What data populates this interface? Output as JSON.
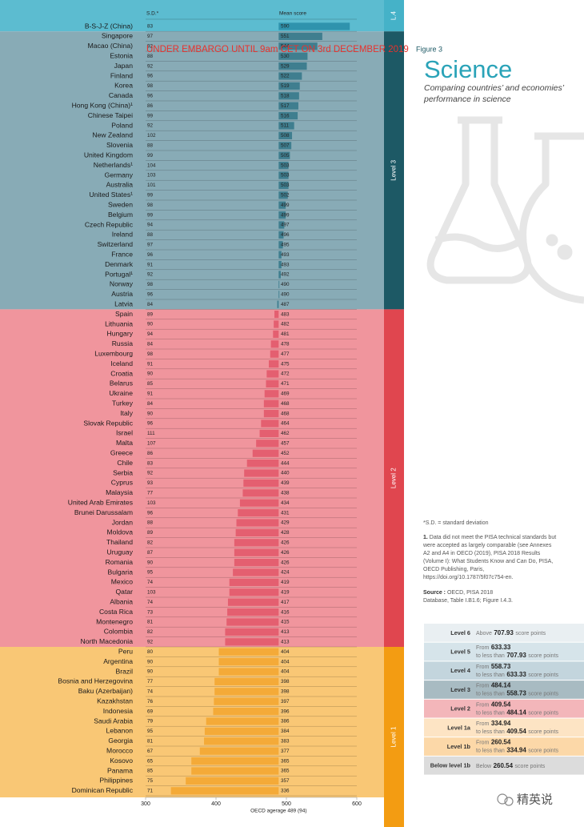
{
  "chart_data": {
    "type": "bar",
    "column_headers": {
      "sd": "S.D.*",
      "score": "Mean score"
    },
    "xlim": [
      300,
      600
    ],
    "xticks": [
      300,
      400,
      500,
      600
    ],
    "x_label": "OECD agerage 489 (94)",
    "oecd_average": 489,
    "groups": [
      {
        "label": "L.4",
        "background": "#5cbcd0",
        "strip": "#45b2c8",
        "bar": "#2f93ad",
        "countries": [
          {
            "name": "B-S-J-Z (China)",
            "sd": 83,
            "score": 590
          }
        ]
      },
      {
        "label": "Level 3",
        "background": "#88abb6",
        "strip": "#1d5965",
        "bar": "#3f7e8f",
        "countries": [
          {
            "name": "Singapore",
            "sd": 97,
            "score": 551
          },
          {
            "name": "Macao (China)",
            "sd": 92,
            "score": 544
          },
          {
            "name": "Estonia",
            "sd": 88,
            "score": 530
          },
          {
            "name": "Japan",
            "sd": 92,
            "score": 529
          },
          {
            "name": "Finland",
            "sd": 96,
            "score": 522
          },
          {
            "name": "Korea",
            "sd": 98,
            "score": 519
          },
          {
            "name": "Canada",
            "sd": 96,
            "score": 518
          },
          {
            "name": "Hong Kong (China)¹",
            "sd": 86,
            "score": 517
          },
          {
            "name": "Chinese Taipei",
            "sd": 99,
            "score": 516
          },
          {
            "name": "Poland",
            "sd": 92,
            "score": 511
          },
          {
            "name": "New Zealand",
            "sd": 102,
            "score": 508
          },
          {
            "name": "Slovenia",
            "sd": 88,
            "score": 507
          },
          {
            "name": "United Kingdom",
            "sd": 99,
            "score": 505
          },
          {
            "name": "Netherlands¹",
            "sd": 104,
            "score": 503
          },
          {
            "name": "Germany",
            "sd": 103,
            "score": 503
          },
          {
            "name": "Australia",
            "sd": 101,
            "score": 503
          },
          {
            "name": "United States¹",
            "sd": 99,
            "score": 502
          },
          {
            "name": "Sweden",
            "sd": 98,
            "score": 499
          },
          {
            "name": "Belgium",
            "sd": 99,
            "score": 499
          },
          {
            "name": "Czech Republic",
            "sd": 94,
            "score": 497
          },
          {
            "name": "Ireland",
            "sd": 88,
            "score": 496
          },
          {
            "name": "Switzerland",
            "sd": 97,
            "score": 495
          },
          {
            "name": "France",
            "sd": 96,
            "score": 493
          },
          {
            "name": "Denmark",
            "sd": 91,
            "score": 493
          },
          {
            "name": "Portugal¹",
            "sd": 92,
            "score": 492
          },
          {
            "name": "Norway",
            "sd": 98,
            "score": 490
          },
          {
            "name": "Austria",
            "sd": 96,
            "score": 490
          },
          {
            "name": "Latvia",
            "sd": 84,
            "score": 487
          }
        ]
      },
      {
        "label": "Level 2",
        "background": "#f0959d",
        "strip": "#e0464f",
        "bar": "#e45f70",
        "countries": [
          {
            "name": "Spain",
            "sd": 89,
            "score": 483
          },
          {
            "name": "Lithuania",
            "sd": 90,
            "score": 482
          },
          {
            "name": "Hungary",
            "sd": 94,
            "score": 481
          },
          {
            "name": "Russia",
            "sd": 84,
            "score": 478
          },
          {
            "name": "Luxembourg",
            "sd": 98,
            "score": 477
          },
          {
            "name": "Iceland",
            "sd": 91,
            "score": 475
          },
          {
            "name": "Croatia",
            "sd": 90,
            "score": 472
          },
          {
            "name": "Belarus",
            "sd": 85,
            "score": 471
          },
          {
            "name": "Ukraine",
            "sd": 91,
            "score": 469
          },
          {
            "name": "Turkey",
            "sd": 84,
            "score": 468
          },
          {
            "name": "Italy",
            "sd": 90,
            "score": 468
          },
          {
            "name": "Slovak Republic",
            "sd": 96,
            "score": 464
          },
          {
            "name": "Israel",
            "sd": 111,
            "score": 462
          },
          {
            "name": "Malta",
            "sd": 107,
            "score": 457
          },
          {
            "name": "Greece",
            "sd": 86,
            "score": 452
          },
          {
            "name": "Chile",
            "sd": 83,
            "score": 444
          },
          {
            "name": "Serbia",
            "sd": 92,
            "score": 440
          },
          {
            "name": "Cyprus",
            "sd": 93,
            "score": 439
          },
          {
            "name": "Malaysia",
            "sd": 77,
            "score": 438
          },
          {
            "name": "United Arab Emirates",
            "sd": 103,
            "score": 434
          },
          {
            "name": "Brunei Darussalam",
            "sd": 96,
            "score": 431
          },
          {
            "name": "Jordan",
            "sd": 88,
            "score": 429
          },
          {
            "name": "Moldova",
            "sd": 89,
            "score": 428
          },
          {
            "name": "Thailand",
            "sd": 82,
            "score": 426
          },
          {
            "name": "Uruguay",
            "sd": 87,
            "score": 426
          },
          {
            "name": "Romania",
            "sd": 90,
            "score": 426
          },
          {
            "name": "Bulgaria",
            "sd": 95,
            "score": 424
          },
          {
            "name": "Mexico",
            "sd": 74,
            "score": 419
          },
          {
            "name": "Qatar",
            "sd": 103,
            "score": 419
          },
          {
            "name": "Albania",
            "sd": 74,
            "score": 417
          },
          {
            "name": "Costa Rica",
            "sd": 73,
            "score": 416
          },
          {
            "name": "Montenegro",
            "sd": 81,
            "score": 415
          },
          {
            "name": "Colombia",
            "sd": 82,
            "score": 413
          },
          {
            "name": "North Macedonia",
            "sd": 92,
            "score": 413
          }
        ]
      },
      {
        "label": "Level 1",
        "background": "#f9c775",
        "strip": "#f39c12",
        "bar": "#f4aa38",
        "countries": [
          {
            "name": "Peru",
            "sd": 80,
            "score": 404
          },
          {
            "name": "Argentina",
            "sd": 90,
            "score": 404
          },
          {
            "name": "Brazil",
            "sd": 90,
            "score": 404
          },
          {
            "name": "Bosnia and Herzegovina",
            "sd": 77,
            "score": 398
          },
          {
            "name": "Baku (Azerbaijan)",
            "sd": 74,
            "score": 398
          },
          {
            "name": "Kazakhstan",
            "sd": 76,
            "score": 397
          },
          {
            "name": "Indonesia",
            "sd": 69,
            "score": 396
          },
          {
            "name": "Saudi Arabia",
            "sd": 79,
            "score": 386
          },
          {
            "name": "Lebanon",
            "sd": 95,
            "score": 384
          },
          {
            "name": "Georgia",
            "sd": 81,
            "score": 383
          },
          {
            "name": "Morocco",
            "sd": 67,
            "score": 377
          },
          {
            "name": "Kosovo",
            "sd": 65,
            "score": 365
          },
          {
            "name": "Panama",
            "sd": 85,
            "score": 365
          },
          {
            "name": "Philippines",
            "sd": 75,
            "score": 357
          },
          {
            "name": "Dominican Republic",
            "sd": 71,
            "score": 336
          }
        ]
      }
    ]
  },
  "embargo": "UNDER EMBARGO UNTIL 9am CET ON 3rd DECEMBER 2019",
  "header": {
    "figure": "Figure 3",
    "title": "Science",
    "subtitle": [
      "Comparing countries’ and economies’",
      "performance in science"
    ]
  },
  "notes": {
    "sd_note": "*S.D. = standard deviation",
    "marker": "1.",
    "lines": [
      " Data did not meet the PISA technical standards but",
      "were accepted as largely comparable (see Annexes",
      "A2 and A4 in OECD (2019), PISA 2018 Results",
      "(Volume I): What Students Know and Can Do, PISA,",
      "OECD Publishing, Paris,",
      "https://doi.org/10.1787/5f07c754-en."
    ],
    "source_label": "Source :",
    "source_lines": [
      " OECD, PISA 2018",
      "Database, Table I.B1.6; Figure I.4.3."
    ]
  },
  "legend": {
    "rows": [
      {
        "level": "Level 6",
        "color": "#e9eff2",
        "lines": [
          [
            "Above",
            "707.93",
            "score points"
          ]
        ]
      },
      {
        "level": "Level 5",
        "color": "#d6e4ea",
        "lines": [
          [
            "From",
            "633.33"
          ],
          [
            "to less than",
            "707.93",
            "score points"
          ]
        ]
      },
      {
        "level": "Level 4",
        "color": "#c3d5dd",
        "lines": [
          [
            "From",
            "558.73"
          ],
          [
            "to less than",
            "633.33",
            "score points"
          ]
        ]
      },
      {
        "level": "Level 3",
        "color": "#a8bbc2",
        "lines": [
          [
            "From",
            "484.14"
          ],
          [
            "to less than",
            "558.73",
            "score points"
          ]
        ]
      },
      {
        "level": "Level 2",
        "color": "#f3b6ba",
        "lines": [
          [
            "From",
            "409.54"
          ],
          [
            "to less than",
            "484.14",
            "score points"
          ]
        ]
      },
      {
        "level": "Level 1a",
        "color": "#fde4c4",
        "lines": [
          [
            "From",
            "334.94"
          ],
          [
            "to less than",
            "409.54",
            "score points"
          ]
        ]
      },
      {
        "level": "Level 1b",
        "color": "#fcd8a8",
        "lines": [
          [
            "From",
            "260.54"
          ],
          [
            "to less than",
            "334.94",
            "score points"
          ]
        ]
      },
      {
        "level": "Below level 1b",
        "color": "#dcdcdc",
        "lines": [
          [
            "Below",
            "260.54",
            "score points"
          ]
        ]
      }
    ]
  },
  "watermark": "精英说"
}
